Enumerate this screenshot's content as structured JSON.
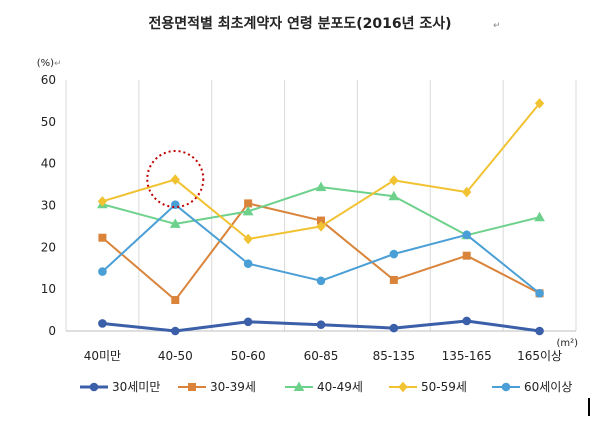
{
  "chart_data": {
    "type": "line",
    "title": "전용면적별 최초계약자 연령 분포도(2016년 조사)",
    "y_unit": "(%)",
    "x_unit": "(m²)",
    "categories": [
      "40미만",
      "40-50",
      "50-60",
      "60-85",
      "85-135",
      "135-165",
      "165이상"
    ],
    "ylim": [
      0,
      60
    ],
    "yticks": [
      "0",
      "10",
      "20",
      "30",
      "40",
      "50",
      "60"
    ],
    "grid": "vertical",
    "legend_position": "bottom",
    "series": [
      {
        "name": "30세미만",
        "color": "#3b5fa8",
        "marker": "circle",
        "values": [
          1.8,
          0.0,
          2.2,
          1.5,
          0.7,
          2.4,
          0.0
        ]
      },
      {
        "name": "30-39세",
        "color": "#d9843a",
        "marker": "square",
        "values": [
          22.3,
          7.4,
          30.5,
          26.4,
          12.2,
          18.0,
          9.0
        ]
      },
      {
        "name": "40-49세",
        "color": "#6dd18c",
        "marker": "triangle",
        "values": [
          30.3,
          25.6,
          28.6,
          34.4,
          32.2,
          22.9,
          27.2
        ]
      },
      {
        "name": "50-59세",
        "color": "#f1c232",
        "marker": "diamond",
        "values": [
          31.0,
          36.2,
          22.0,
          25.0,
          36.0,
          33.2,
          54.4
        ]
      },
      {
        "name": "60세이상",
        "color": "#4a9fd6",
        "marker": "circle",
        "values": [
          14.2,
          30.2,
          16.1,
          12.0,
          18.4,
          23.0,
          9.0
        ]
      }
    ],
    "highlight_category": "40-50"
  }
}
